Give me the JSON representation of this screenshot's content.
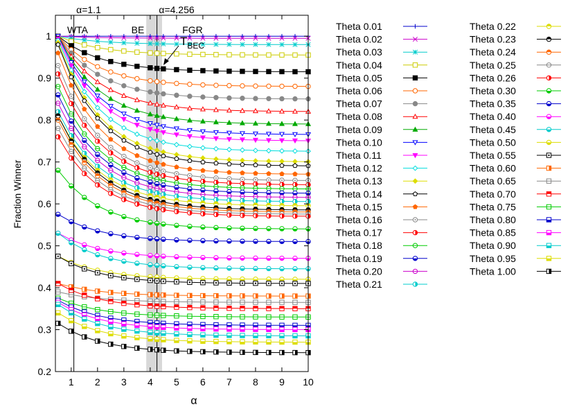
{
  "chart_data": {
    "type": "line",
    "xlabel": "α",
    "ylabel": "Fraction Winner",
    "xlim": [
      0.4,
      10
    ],
    "ylim": [
      0.2,
      1.05
    ],
    "x_ticks": [
      "1",
      "2",
      "3",
      "4",
      "5",
      "6",
      "7",
      "8",
      "9",
      "10"
    ],
    "y_ticks": [
      "0.2",
      "0.3",
      "0.4",
      "0.5",
      "0.6",
      "0.7",
      "0.8",
      "0.9",
      "1"
    ],
    "x": [
      0.5,
      1.0,
      1.5,
      2.0,
      2.5,
      3.0,
      3.5,
      4.0,
      4.256,
      4.5,
      5.0,
      5.5,
      6.0,
      6.5,
      7.0,
      7.5,
      8.0,
      8.5,
      9.0,
      9.5,
      10.0
    ],
    "annotations": {
      "alpha_1": "α=1.1",
      "alpha_2": "α=4.256",
      "wta": "WTA",
      "be": "BE",
      "fgr": "FGR",
      "tbec_main": "T",
      "tbec_sub": "BEC"
    },
    "vertical_markers": [
      1.1,
      4.256
    ],
    "shaded_band": [
      3.85,
      4.45
    ],
    "legend_position": "right",
    "series": [
      {
        "name": "Theta 0.01",
        "color": "#0000cc",
        "marker": "plus",
        "start": 1.0,
        "end": 1.0
      },
      {
        "name": "Theta 0.02",
        "color": "#cc00cc",
        "marker": "cross",
        "start": 1.0,
        "end": 0.995
      },
      {
        "name": "Theta 0.03",
        "color": "#00cccc",
        "marker": "star",
        "start": 1.0,
        "end": 0.98
      },
      {
        "name": "Theta 0.04",
        "color": "#cccc00",
        "marker": "square-open",
        "start": 1.0,
        "end": 0.955
      },
      {
        "name": "Theta 0.05",
        "color": "#000000",
        "marker": "square-filled",
        "start": 1.0,
        "end": 0.915
      },
      {
        "name": "Theta 0.06",
        "color": "#ff6600",
        "marker": "circle-open",
        "start": 1.0,
        "end": 0.88
      },
      {
        "name": "Theta 0.07",
        "color": "#888888",
        "marker": "circle-filled",
        "start": 1.0,
        "end": 0.85
      },
      {
        "name": "Theta 0.08",
        "color": "#ff0000",
        "marker": "triangle-open",
        "start": 1.0,
        "end": 0.82
      },
      {
        "name": "Theta 0.09",
        "color": "#00aa00",
        "marker": "triangle-filled",
        "start": 1.0,
        "end": 0.79
      },
      {
        "name": "Theta 0.10",
        "color": "#0000ff",
        "marker": "itriangle-open",
        "start": 1.0,
        "end": 0.765
      },
      {
        "name": "Theta 0.11",
        "color": "#ff00ff",
        "marker": "itriangle-filled",
        "start": 0.995,
        "end": 0.75
      },
      {
        "name": "Theta 0.12",
        "color": "#00dddd",
        "marker": "diamond-open",
        "start": 0.99,
        "end": 0.725
      },
      {
        "name": "Theta 0.13",
        "color": "#dddd00",
        "marker": "diamond-filled",
        "start": 0.985,
        "end": 0.7
      },
      {
        "name": "Theta 0.14",
        "color": "#000000",
        "marker": "pentagon-open",
        "start": 0.98,
        "end": 0.69
      },
      {
        "name": "Theta 0.15",
        "color": "#ff6600",
        "marker": "pentagon-filled",
        "start": 0.96,
        "end": 0.67
      },
      {
        "name": "Theta 0.16",
        "color": "#888888",
        "marker": "circ-dot",
        "start": 0.93,
        "end": 0.655
      },
      {
        "name": "Theta 0.17",
        "color": "#ff0000",
        "marker": "circ-half",
        "start": 0.91,
        "end": 0.645
      },
      {
        "name": "Theta 0.18",
        "color": "#00cc00",
        "marker": "circ-hline",
        "start": 0.88,
        "end": 0.635
      },
      {
        "name": "Theta 0.19",
        "color": "#0000cc",
        "marker": "circ-lower",
        "start": 0.86,
        "end": 0.625
      },
      {
        "name": "Theta 0.20",
        "color": "#cc00cc",
        "marker": "circ-hline",
        "start": 0.84,
        "end": 0.615
      },
      {
        "name": "Theta 0.21",
        "color": "#00cccc",
        "marker": "circ-half",
        "start": 0.82,
        "end": 0.605
      },
      {
        "name": "Theta 0.22",
        "color": "#dddd00",
        "marker": "circ-upper",
        "start": 0.81,
        "end": 0.595
      },
      {
        "name": "Theta 0.23",
        "color": "#000000",
        "marker": "circ-upper",
        "start": 0.81,
        "end": 0.585
      },
      {
        "name": "Theta 0.24",
        "color": "#ff6600",
        "marker": "circ-upper",
        "start": 0.8,
        "end": 0.58
      },
      {
        "name": "Theta 0.25",
        "color": "#888888",
        "marker": "circ-hline",
        "start": 0.78,
        "end": 0.575
      },
      {
        "name": "Theta 0.26",
        "color": "#ff0000",
        "marker": "circ-half",
        "start": 0.76,
        "end": 0.57
      },
      {
        "name": "Theta 0.30",
        "color": "#00cc00",
        "marker": "circ-lower",
        "start": 0.68,
        "end": 0.54
      },
      {
        "name": "Theta 0.35",
        "color": "#0000cc",
        "marker": "circ-lower",
        "start": 0.575,
        "end": 0.51
      },
      {
        "name": "Theta 0.40",
        "color": "#ff00ff",
        "marker": "circ-lower",
        "start": 0.53,
        "end": 0.47
      },
      {
        "name": "Theta 0.45",
        "color": "#00cccc",
        "marker": "circ-lower",
        "start": 0.53,
        "end": 0.445
      },
      {
        "name": "Theta 0.50",
        "color": "#dddd00",
        "marker": "circ-lower",
        "start": 0.475,
        "end": 0.42
      },
      {
        "name": "Theta 0.55",
        "color": "#000000",
        "marker": "sq-dot",
        "start": 0.475,
        "end": 0.41
      },
      {
        "name": "Theta 0.60",
        "color": "#ff6600",
        "marker": "sq-half",
        "start": 0.41,
        "end": 0.38
      },
      {
        "name": "Theta 0.65",
        "color": "#888888",
        "marker": "sq-hline",
        "start": 0.39,
        "end": 0.365
      },
      {
        "name": "Theta 0.70",
        "color": "#ff0000",
        "marker": "sq-upper",
        "start": 0.41,
        "end": 0.35
      },
      {
        "name": "Theta 0.75",
        "color": "#00cc00",
        "marker": "sq-hline",
        "start": 0.375,
        "end": 0.33
      },
      {
        "name": "Theta 0.80",
        "color": "#0000cc",
        "marker": "sq-lower",
        "start": 0.37,
        "end": 0.31
      },
      {
        "name": "Theta 0.85",
        "color": "#ff00ff",
        "marker": "sq-lower",
        "start": 0.365,
        "end": 0.3
      },
      {
        "name": "Theta 0.90",
        "color": "#00cccc",
        "marker": "sq-lower",
        "start": 0.36,
        "end": 0.285
      },
      {
        "name": "Theta 0.95",
        "color": "#dddd00",
        "marker": "sq-lower",
        "start": 0.34,
        "end": 0.27
      },
      {
        "name": "Theta 1.00",
        "color": "#000000",
        "marker": "sq-half",
        "start": 0.315,
        "end": 0.245
      }
    ]
  }
}
